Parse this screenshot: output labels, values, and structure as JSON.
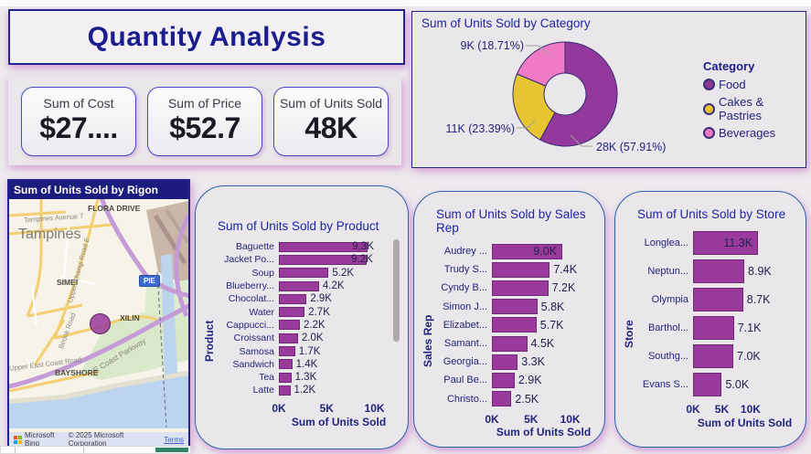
{
  "page": {
    "title": "Quantity Analysis"
  },
  "kpis": [
    {
      "label": "Sum of Cost",
      "value": "$27...."
    },
    {
      "label": "Sum of Price",
      "value": "$52.7"
    },
    {
      "label": "Sum of Units Sold",
      "value": "48K"
    }
  ],
  "map": {
    "title": "Sum of Units Sold by Rigon",
    "labels": {
      "ave7": "Tampines Avenue 7",
      "flora": "FLORA DRIVE",
      "tampines": "Tampines",
      "simei": "SIMEI",
      "pie": "PIE",
      "changi": "Upper Changi Road E",
      "xilin": "XILIN",
      "bedok": "Bedok Road",
      "ecp": "E Coast Parkway",
      "uecr": "Upper East Coast Road",
      "bayshore": "BAYSHORE"
    },
    "provider": "Microsoft Bing",
    "attribution": "© 2025 Microsoft Corporation",
    "terms": "Terms"
  },
  "chart_data": [
    {
      "type": "pie",
      "donut": true,
      "title": "Sum of Units Sold by Category",
      "legend_title": "Category",
      "legend_position": "right",
      "slices": [
        {
          "name": "Food",
          "value": 28000,
          "pct": 57.91,
          "display": "28K (57.91%)",
          "color": "#93399B"
        },
        {
          "name": "Cakes & Pastries",
          "value": 11000,
          "pct": 23.39,
          "display": "11K (23.39%)",
          "color": "#E7C531"
        },
        {
          "name": "Beverages",
          "value": 9000,
          "pct": 18.71,
          "display": "9K (18.71%)",
          "color": "#F07BC5"
        }
      ]
    },
    {
      "type": "bar",
      "orientation": "horizontal",
      "title": "Sum of Units Sold by Product",
      "xlabel": "Sum of Units Sold",
      "ylabel": "Product",
      "categories": [
        "Baguette",
        "Jacket Po...",
        "Soup",
        "Blueberry...",
        "Chocolat...",
        "Water",
        "Cappucci...",
        "Croissant",
        "Samosa",
        "Sandwich",
        "Tea",
        "Latte"
      ],
      "values": [
        9300,
        9200,
        5200,
        4200,
        2900,
        2700,
        2200,
        2000,
        1700,
        1400,
        1300,
        1200
      ],
      "value_labels": [
        "9.3K",
        "9.2K",
        "5.2K",
        "4.2K",
        "2.9K",
        "2.7K",
        "2.2K",
        "2.0K",
        "1.7K",
        "1.4K",
        "1.3K",
        "1.2K"
      ],
      "label_pos": [
        "overlap",
        "overlap",
        "out",
        "out",
        "out",
        "out",
        "out",
        "out",
        "out",
        "out",
        "out",
        "out"
      ],
      "ticks": [
        "0K",
        "5K",
        "10K"
      ],
      "tick_values": [
        0,
        5000,
        10000
      ],
      "scale_max": 11000,
      "has_scrollbar": true
    },
    {
      "type": "bar",
      "orientation": "horizontal",
      "title": "Sum of Units Sold by Sales Rep",
      "xlabel": "Sum of Units Sold",
      "ylabel": "Sales Rep",
      "categories": [
        "Audrey ...",
        "Trudy S...",
        "Cyndy B...",
        "Simon J...",
        "Elizabet...",
        "Samant...",
        "Georgia...",
        "Paul Be...",
        "Christo..."
      ],
      "values": [
        9000,
        7400,
        7200,
        5800,
        5700,
        4500,
        3300,
        2900,
        2500
      ],
      "value_labels": [
        "9.0K",
        "7.4K",
        "7.2K",
        "5.8K",
        "5.7K",
        "4.5K",
        "3.3K",
        "2.9K",
        "2.5K"
      ],
      "label_pos": [
        "in",
        "out",
        "out",
        "out",
        "out",
        "out",
        "out",
        "out",
        "out"
      ],
      "ticks": [
        "0K",
        "5K",
        "10K"
      ],
      "tick_values": [
        0,
        5000,
        10000
      ],
      "scale_max": 12500,
      "has_scrollbar": false
    },
    {
      "type": "bar",
      "orientation": "horizontal",
      "title": "Sum of Units Sold by Store",
      "xlabel": "Sum of Units Sold",
      "ylabel": "Store",
      "categories": [
        "Longlea...",
        "Neptun...",
        "Olympia",
        "Barthol...",
        "Southg...",
        "Evans S..."
      ],
      "values": [
        11300,
        8900,
        8700,
        7100,
        7000,
        5000
      ],
      "value_labels": [
        "11.3K",
        "8.9K",
        "8.7K",
        "7.1K",
        "7.0K",
        "5.0K"
      ],
      "label_pos": [
        "in",
        "out",
        "out",
        "out",
        "out",
        "out"
      ],
      "ticks": [
        "0K",
        "5K",
        "10K"
      ],
      "tick_values": [
        0,
        5000,
        10000
      ],
      "scale_max": 17000,
      "has_scrollbar": false
    }
  ],
  "colors": {
    "accent_navy": "#1B1C8E",
    "bar_fill": "#9B3A9D",
    "bar_border": "#6E2B74",
    "panel_bg": "#E9E7EA",
    "page_bg": "#EDE9ED",
    "map_header": "#1B1C7E",
    "scroll_thumb_teal": "#2E8565"
  }
}
